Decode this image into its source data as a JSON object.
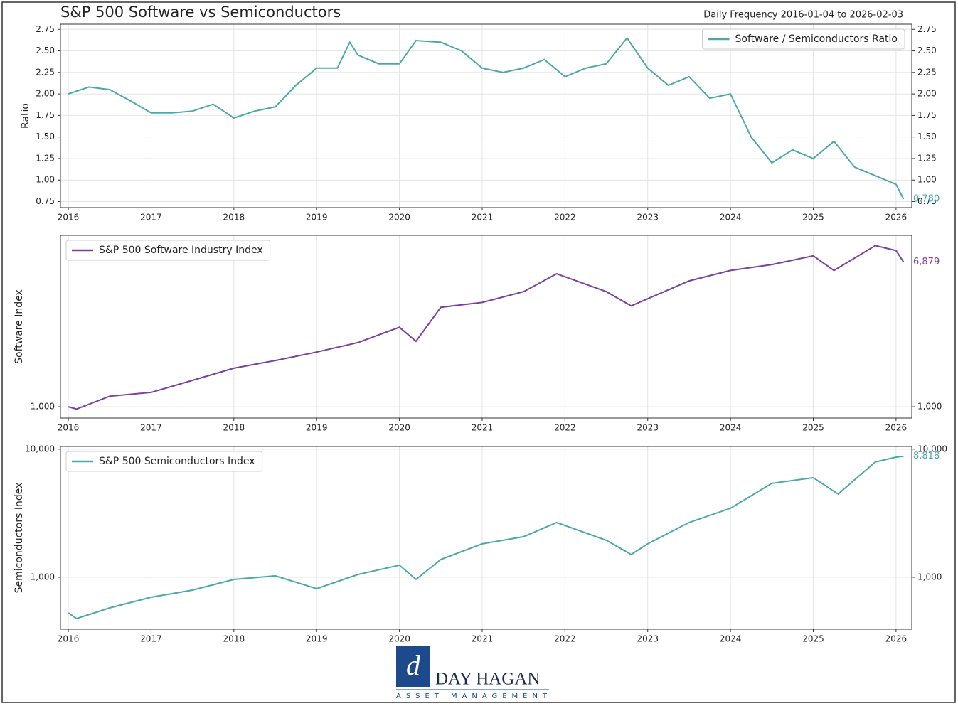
{
  "chart_data": [
    {
      "type": "line",
      "title": "S&P 500 Software vs Semiconductors",
      "subtitle": "Daily Frequency 2016-01-04 to 2026-02-03",
      "y_label": "Ratio",
      "log_y": false,
      "grid": true,
      "legend": "upper right",
      "x": [
        2016.0,
        2016.25,
        2016.5,
        2016.75,
        2017.0,
        2017.25,
        2017.5,
        2017.75,
        2018.0,
        2018.25,
        2018.5,
        2018.75,
        2019.0,
        2019.25,
        2019.4,
        2019.5,
        2019.75,
        2020.0,
        2020.2,
        2020.5,
        2020.75,
        2021.0,
        2021.25,
        2021.5,
        2021.75,
        2022.0,
        2022.25,
        2022.5,
        2022.75,
        2023.0,
        2023.25,
        2023.5,
        2023.75,
        2024.0,
        2024.25,
        2024.5,
        2024.75,
        2025.0,
        2025.25,
        2025.5,
        2025.75,
        2026.0,
        2026.09
      ],
      "series": [
        {
          "name": "Software / Semiconductors Ratio",
          "color": "#4aa9a8",
          "values": [
            2.0,
            2.08,
            2.05,
            1.92,
            1.78,
            1.78,
            1.8,
            1.88,
            1.72,
            1.8,
            1.85,
            2.1,
            2.3,
            2.3,
            2.6,
            2.45,
            2.35,
            2.35,
            2.62,
            2.6,
            2.5,
            2.3,
            2.25,
            2.3,
            2.4,
            2.2,
            2.3,
            2.35,
            2.65,
            2.3,
            2.1,
            2.2,
            1.95,
            2.0,
            1.5,
            1.2,
            1.35,
            1.25,
            1.45,
            1.15,
            1.05,
            0.95,
            0.78
          ],
          "value_labels": [
            null,
            null,
            null,
            null,
            null,
            null,
            null,
            null,
            null,
            null,
            null,
            null,
            null,
            null,
            null,
            null,
            null,
            null,
            null,
            null,
            null,
            null,
            null,
            null,
            null,
            null,
            null,
            null,
            null,
            null,
            null,
            null,
            null,
            null,
            null,
            null,
            null,
            null,
            null,
            null,
            null,
            null,
            "0.780"
          ]
        }
      ],
      "xlim": [
        2015.905,
        2026.19
      ],
      "xticks": [
        2016,
        2017,
        2018,
        2019,
        2020,
        2021,
        2022,
        2023,
        2024,
        2025,
        2026
      ],
      "ylim": [
        0.68,
        2.81
      ],
      "yticks": [
        0.75,
        {
          "value": 1,
          "label": "1.00"
        },
        1.25,
        {
          "value": 1.5,
          "label": "1.50"
        },
        1.75,
        {
          "value": 2,
          "label": "2.00"
        },
        2.25,
        {
          "value": 2.5,
          "label": "2.50"
        },
        2.75
      ]
    },
    {
      "type": "line",
      "y_label": "Software Index",
      "log_y": true,
      "grid": true,
      "legend": "upper left",
      "x": [
        2016.0,
        2016.1,
        2016.5,
        2017.0,
        2017.5,
        2018.0,
        2018.5,
        2019.0,
        2019.5,
        2020.0,
        2020.2,
        2020.5,
        2021.0,
        2021.5,
        2021.9,
        2022.5,
        2022.8,
        2023.0,
        2023.5,
        2024.0,
        2024.5,
        2025.0,
        2025.25,
        2025.75,
        2026.0,
        2026.09
      ],
      "series": [
        {
          "name": "S&P 500 Software Industry Index",
          "color": "#7b3f9e",
          "values": [
            1000,
            970,
            1150,
            1210,
            1420,
            1670,
            1850,
            2070,
            2350,
            2880,
            2390,
            3760,
            4010,
            4630,
            5870,
            4630,
            3830,
            4210,
            5340,
            6140,
            6640,
            7460,
            6140,
            8550,
            8000,
            6879
          ],
          "value_labels": [
            null,
            null,
            null,
            null,
            null,
            null,
            null,
            null,
            null,
            null,
            null,
            null,
            null,
            null,
            null,
            null,
            null,
            null,
            null,
            null,
            null,
            null,
            null,
            null,
            null,
            "6,879"
          ]
        }
      ],
      "xlim": [
        2015.905,
        2026.19
      ],
      "xticks": [
        2016,
        2017,
        2018,
        2019,
        2020,
        2021,
        2022,
        2023,
        2024,
        2025,
        2026
      ],
      "ylim": [
        860,
        9800
      ],
      "yticks": [
        {
          "value": 1000,
          "label": "1,000"
        }
      ]
    },
    {
      "type": "line",
      "y_label": "Semiconductors Index",
      "log_y": true,
      "grid": true,
      "legend": "upper left",
      "x": [
        2016.0,
        2016.1,
        2016.5,
        2017.0,
        2017.5,
        2018.0,
        2018.5,
        2019.0,
        2019.5,
        2020.0,
        2020.2,
        2020.5,
        2021.0,
        2021.5,
        2021.9,
        2022.5,
        2022.8,
        2023.0,
        2023.5,
        2024.0,
        2024.5,
        2025.0,
        2025.3,
        2025.75,
        2026.0,
        2026.09
      ],
      "series": [
        {
          "name": "S&P 500 Semiconductors Index",
          "color": "#4aa9a8",
          "values": [
            528,
            476,
            577,
            699,
            794,
            962,
            1026,
            815,
            1052,
            1243,
            962,
            1378,
            1825,
            2073,
            2678,
            1944,
            1506,
            1825,
            2678,
            3456,
            5412,
            5994,
            4467,
            7943,
            8663,
            8818
          ],
          "value_labels": [
            null,
            null,
            null,
            null,
            null,
            null,
            null,
            null,
            null,
            null,
            null,
            null,
            null,
            null,
            null,
            null,
            null,
            null,
            null,
            null,
            null,
            null,
            null,
            null,
            null,
            "8,818"
          ]
        }
      ],
      "xlim": [
        2015.905,
        2026.19
      ],
      "xticks": [
        2016,
        2017,
        2018,
        2019,
        2020,
        2021,
        2022,
        2023,
        2024,
        2025,
        2026
      ],
      "ylim": [
        393,
        10500
      ],
      "yticks": [
        {
          "value": 1000,
          "label": "1,000"
        },
        {
          "value": 10000,
          "label": "10,000"
        }
      ]
    }
  ],
  "footer": {
    "logo_name": "DAY HAGAN",
    "logo_tagline": "ASSET MANAGEMENT"
  }
}
